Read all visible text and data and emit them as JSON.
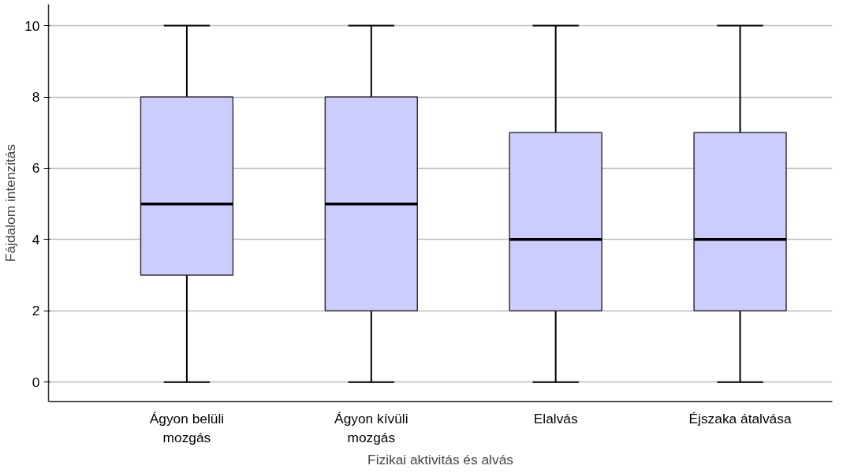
{
  "chart_data": {
    "type": "box",
    "xlabel": "Fizikai aktivitás és alvás",
    "ylabel": "Fájdalom intenzitás",
    "categories": [
      "Ágyon belüli mozgás",
      "Ágyon kívüli mozgás",
      "Elalvás",
      "Éjszaka átalvása"
    ],
    "boxes": [
      {
        "low": 0,
        "q1": 3,
        "median": 5,
        "q3": 8,
        "high": 10
      },
      {
        "low": 0,
        "q1": 2,
        "median": 5,
        "q3": 8,
        "high": 10
      },
      {
        "low": 0,
        "q1": 2,
        "median": 4,
        "q3": 7,
        "high": 10
      },
      {
        "low": 0,
        "q1": 2,
        "median": 4,
        "q3": 7,
        "high": 10
      }
    ],
    "color": "#ccccff",
    "ylim": [
      -0.55,
      10.6
    ],
    "yticks": [
      0,
      2,
      4,
      6,
      8,
      10
    ],
    "grid": "y"
  }
}
